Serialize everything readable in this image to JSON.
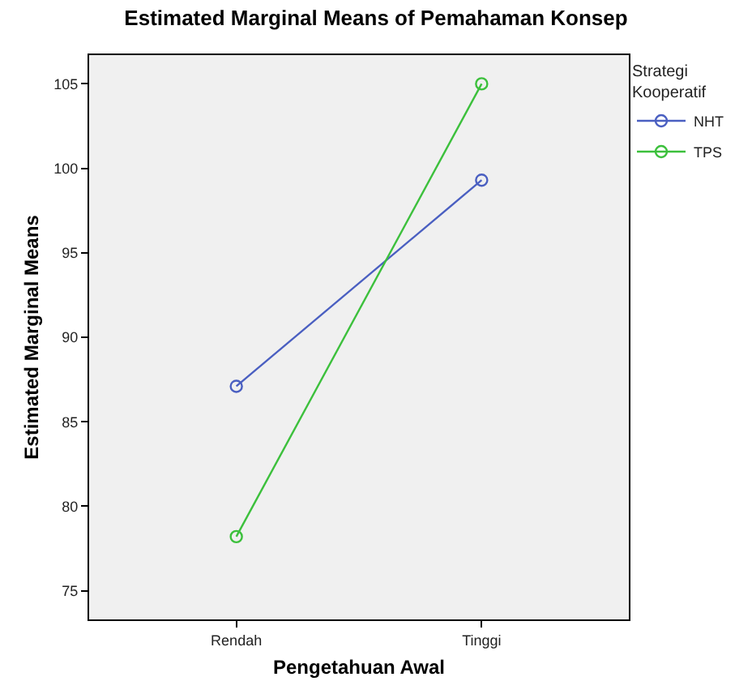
{
  "chart_data": {
    "type": "line",
    "title": "Estimated Marginal Means of Pemahaman Konsep",
    "xlabel": "Pengetahuan Awal",
    "ylabel": "Estimated Marginal Means",
    "legend_title": "Strategi Kooperatif",
    "categories": [
      "Rendah",
      "Tinggi"
    ],
    "series": [
      {
        "name": "NHT",
        "color": "#4a5fc1",
        "values": [
          87.1,
          99.3
        ]
      },
      {
        "name": "TPS",
        "color": "#3cc03c",
        "values": [
          78.2,
          105.0
        ]
      }
    ],
    "ylim": [
      73.3,
      106.7
    ],
    "yticks": [
      75,
      80,
      85,
      90,
      95,
      100,
      105
    ],
    "grid": false,
    "legend": "top right",
    "marker": "circle",
    "line_style": "solid"
  }
}
